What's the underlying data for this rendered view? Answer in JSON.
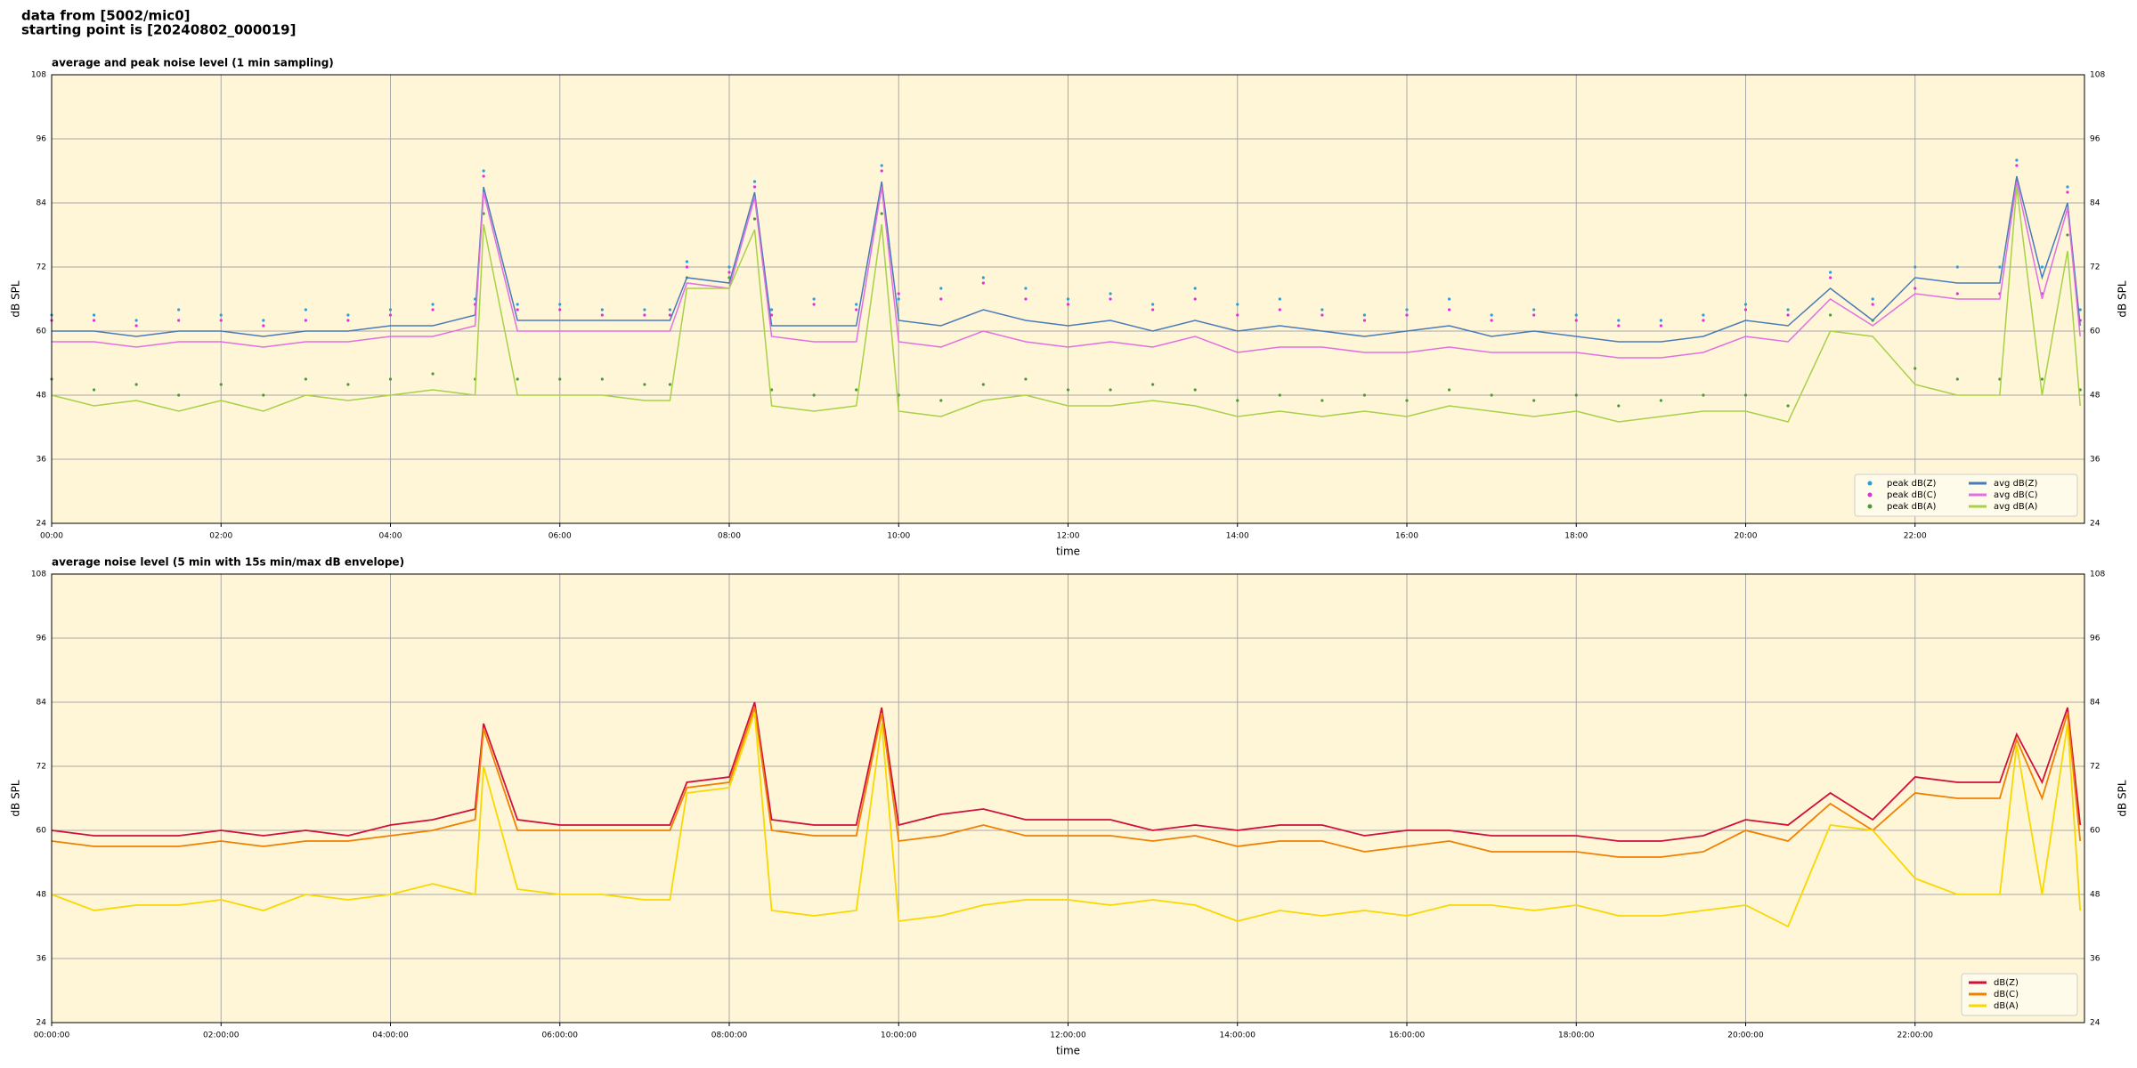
{
  "header": {
    "line1": "data from [5002/mic0]",
    "line2": "starting point is [20240802_000019]"
  },
  "chart_data": [
    {
      "type": "line",
      "title": "average and peak noise level (1 min sampling)",
      "x_label": "time",
      "y_label": "dB SPL",
      "xlim": [
        0,
        24
      ],
      "ylim": [
        24,
        108
      ],
      "yticks": [
        24,
        36,
        48,
        60,
        72,
        84,
        96,
        108
      ],
      "xticks": [
        {
          "value": 0,
          "label": "00:00"
        },
        {
          "value": 2,
          "label": "02:00"
        },
        {
          "value": 4,
          "label": "04:00"
        },
        {
          "value": 6,
          "label": "06:00"
        },
        {
          "value": 8,
          "label": "08:00"
        },
        {
          "value": 10,
          "label": "10:00"
        },
        {
          "value": 12,
          "label": "12:00"
        },
        {
          "value": 14,
          "label": "14:00"
        },
        {
          "value": 16,
          "label": "16:00"
        },
        {
          "value": 18,
          "label": "18:00"
        },
        {
          "value": 20,
          "label": "20:00"
        },
        {
          "value": 22,
          "label": "22:00"
        }
      ],
      "grid": true,
      "legend": "lower right",
      "legend_columns": 2,
      "background": "#fff6d8",
      "x": [
        0,
        0.5,
        1,
        1.5,
        2,
        2.5,
        3,
        3.5,
        4,
        4.5,
        5,
        5.1,
        5.5,
        6,
        6.5,
        7,
        7.3,
        7.5,
        8,
        8.3,
        8.5,
        9,
        9.5,
        9.8,
        10,
        10.5,
        11,
        11.5,
        12,
        12.5,
        13,
        13.5,
        14,
        14.5,
        15,
        15.5,
        16,
        16.5,
        17,
        17.5,
        18,
        18.5,
        19,
        19.5,
        20,
        20.5,
        21,
        21.5,
        22,
        22.5,
        23,
        23.2,
        23.5,
        23.8,
        23.95
      ],
      "series": [
        {
          "name": "peak dB(Z)",
          "type": "scatter",
          "color": "#2a9fd8",
          "values": [
            63,
            63,
            62,
            64,
            63,
            62,
            64,
            63,
            64,
            65,
            66,
            90,
            65,
            65,
            64,
            64,
            64,
            73,
            72,
            88,
            64,
            66,
            65,
            91,
            66,
            68,
            70,
            68,
            66,
            67,
            65,
            68,
            65,
            66,
            64,
            63,
            64,
            66,
            63,
            64,
            63,
            62,
            62,
            63,
            65,
            64,
            71,
            66,
            72,
            72,
            72,
            92,
            72,
            87,
            64
          ]
        },
        {
          "name": "peak dB(C)",
          "type": "scatter",
          "color": "#e030e0",
          "values": [
            62,
            62,
            61,
            62,
            62,
            61,
            62,
            62,
            63,
            64,
            65,
            89,
            64,
            64,
            63,
            63,
            63,
            72,
            71,
            87,
            63,
            65,
            64,
            90,
            67,
            66,
            69,
            66,
            65,
            66,
            64,
            66,
            63,
            64,
            63,
            62,
            63,
            64,
            62,
            63,
            62,
            61,
            61,
            62,
            64,
            63,
            70,
            65,
            68,
            67,
            67,
            91,
            67,
            86,
            62
          ]
        },
        {
          "name": "peak dB(A)",
          "type": "scatter",
          "color": "#4a9a3a",
          "values": [
            51,
            49,
            50,
            48,
            50,
            48,
            51,
            50,
            51,
            52,
            51,
            82,
            51,
            51,
            51,
            50,
            50,
            70,
            70,
            81,
            49,
            48,
            49,
            82,
            48,
            47,
            50,
            51,
            49,
            49,
            50,
            49,
            47,
            48,
            47,
            48,
            47,
            49,
            48,
            47,
            48,
            46,
            47,
            48,
            48,
            46,
            63,
            62,
            53,
            51,
            51,
            88,
            51,
            78,
            49
          ]
        },
        {
          "name": "avg dB(Z)",
          "type": "line",
          "color": "#4a7ab8",
          "values": [
            60,
            60,
            59,
            60,
            60,
            59,
            60,
            60,
            61,
            61,
            63,
            87,
            62,
            62,
            62,
            62,
            62,
            70,
            69,
            86,
            61,
            61,
            61,
            88,
            62,
            61,
            64,
            62,
            61,
            62,
            60,
            62,
            60,
            61,
            60,
            59,
            60,
            61,
            59,
            60,
            59,
            58,
            58,
            59,
            62,
            61,
            68,
            62,
            70,
            69,
            69,
            89,
            70,
            84,
            61
          ]
        },
        {
          "name": "avg dB(C)",
          "type": "line",
          "color": "#e070e0",
          "values": [
            58,
            58,
            57,
            58,
            58,
            57,
            58,
            58,
            59,
            59,
            61,
            86,
            60,
            60,
            60,
            60,
            60,
            69,
            68,
            85,
            59,
            58,
            58,
            87,
            58,
            57,
            60,
            58,
            57,
            58,
            57,
            59,
            56,
            57,
            57,
            56,
            56,
            57,
            56,
            56,
            56,
            55,
            55,
            56,
            59,
            58,
            66,
            61,
            67,
            66,
            66,
            88,
            66,
            83,
            59
          ]
        },
        {
          "name": "avg dB(A)",
          "type": "line",
          "color": "#a8d048",
          "values": [
            48,
            46,
            47,
            45,
            47,
            45,
            48,
            47,
            48,
            49,
            48,
            80,
            48,
            48,
            48,
            47,
            47,
            68,
            68,
            79,
            46,
            45,
            46,
            80,
            45,
            44,
            47,
            48,
            46,
            46,
            47,
            46,
            44,
            45,
            44,
            45,
            44,
            46,
            45,
            44,
            45,
            43,
            44,
            45,
            45,
            43,
            60,
            59,
            50,
            48,
            48,
            87,
            48,
            75,
            46
          ]
        }
      ]
    },
    {
      "type": "line",
      "title": "average noise level (5 min with 15s min/max dB envelope)",
      "x_label": "time",
      "y_label": "dB SPL",
      "xlim": [
        0,
        24
      ],
      "ylim": [
        24,
        108
      ],
      "yticks": [
        24,
        36,
        48,
        60,
        72,
        84,
        96,
        108
      ],
      "xticks": [
        {
          "value": 0,
          "label": "00:00:00"
        },
        {
          "value": 2,
          "label": "02:00:00"
        },
        {
          "value": 4,
          "label": "04:00:00"
        },
        {
          "value": 6,
          "label": "06:00:00"
        },
        {
          "value": 8,
          "label": "08:00:00"
        },
        {
          "value": 10,
          "label": "10:00:00"
        },
        {
          "value": 12,
          "label": "12:00:00"
        },
        {
          "value": 14,
          "label": "14:00:00"
        },
        {
          "value": 16,
          "label": "16:00:00"
        },
        {
          "value": 18,
          "label": "18:00:00"
        },
        {
          "value": 20,
          "label": "20:00:00"
        },
        {
          "value": 22,
          "label": "22:00:00"
        }
      ],
      "grid": true,
      "legend": "lower right",
      "legend_columns": 1,
      "background": "#fff6d8",
      "x": [
        0,
        0.5,
        1,
        1.5,
        2,
        2.5,
        3,
        3.5,
        4,
        4.5,
        5,
        5.1,
        5.5,
        6,
        6.5,
        7,
        7.3,
        7.5,
        8,
        8.3,
        8.5,
        9,
        9.5,
        9.8,
        10,
        10.5,
        11,
        11.5,
        12,
        12.5,
        13,
        13.5,
        14,
        14.5,
        15,
        15.5,
        16,
        16.5,
        17,
        17.5,
        18,
        18.5,
        19,
        19.5,
        20,
        20.5,
        21,
        21.5,
        22,
        22.5,
        23,
        23.2,
        23.5,
        23.8,
        23.95
      ],
      "series": [
        {
          "name": "dB(Z)",
          "type": "line",
          "color": "#d0103a",
          "values": [
            60,
            59,
            59,
            59,
            60,
            59,
            60,
            59,
            61,
            62,
            64,
            80,
            62,
            61,
            61,
            61,
            61,
            69,
            70,
            84,
            62,
            61,
            61,
            83,
            61,
            63,
            64,
            62,
            62,
            62,
            60,
            61,
            60,
            61,
            61,
            59,
            60,
            60,
            59,
            59,
            59,
            58,
            58,
            59,
            62,
            61,
            67,
            62,
            70,
            69,
            69,
            78,
            69,
            83,
            61
          ]
        },
        {
          "name": "dB(C)",
          "type": "line",
          "color": "#f08000",
          "values": [
            58,
            57,
            57,
            57,
            58,
            57,
            58,
            58,
            59,
            60,
            62,
            79,
            60,
            60,
            60,
            60,
            60,
            68,
            69,
            83,
            60,
            59,
            59,
            82,
            58,
            59,
            61,
            59,
            59,
            59,
            58,
            59,
            57,
            58,
            58,
            56,
            57,
            58,
            56,
            56,
            56,
            55,
            55,
            56,
            60,
            58,
            65,
            60,
            67,
            66,
            66,
            77,
            66,
            82,
            58
          ]
        },
        {
          "name": "dB(A)",
          "type": "line",
          "color": "#f8d800",
          "values": [
            48,
            45,
            46,
            46,
            47,
            45,
            48,
            47,
            48,
            50,
            48,
            72,
            49,
            48,
            48,
            47,
            47,
            67,
            68,
            82,
            45,
            44,
            45,
            80,
            43,
            44,
            46,
            47,
            47,
            46,
            47,
            46,
            43,
            45,
            44,
            45,
            44,
            46,
            46,
            45,
            46,
            44,
            44,
            45,
            46,
            42,
            61,
            60,
            51,
            48,
            48,
            76,
            48,
            80,
            45
          ]
        }
      ]
    }
  ]
}
